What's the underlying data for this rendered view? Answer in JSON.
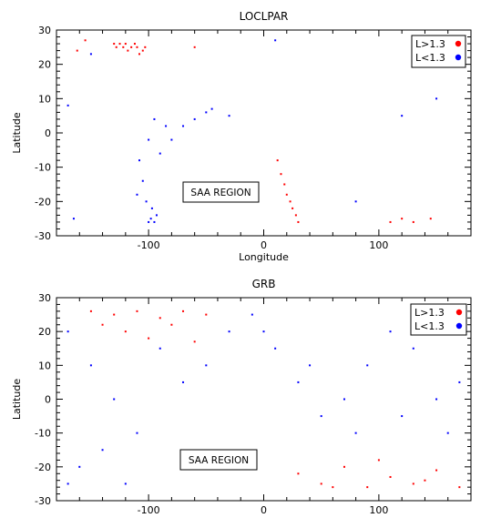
{
  "chart_data": [
    {
      "type": "scatter",
      "title": "LOCLPAR",
      "xlabel": "Longitude",
      "ylabel": "Latitude",
      "xlim": [
        -180,
        180
      ],
      "ylim": [
        -30,
        30
      ],
      "xticks": [
        -100,
        0,
        100
      ],
      "yticks": [
        30,
        20,
        10,
        0,
        -10,
        -20,
        -30
      ],
      "legend_position": "top-right",
      "annotation": "SAA REGION",
      "series": [
        {
          "name": "L>1.3",
          "color": "#ff0000",
          "points": [
            [
              -130,
              26
            ],
            [
              -125,
              26
            ],
            [
              -120,
              26
            ],
            [
              -115,
              25
            ],
            [
              -110,
              25
            ],
            [
              -105,
              24
            ],
            [
              -128,
              25
            ],
            [
              -118,
              24
            ],
            [
              -112,
              26
            ],
            [
              -108,
              23
            ],
            [
              -103,
              25
            ],
            [
              -122,
              25
            ],
            [
              -162,
              24
            ],
            [
              -155,
              27
            ],
            [
              -60,
              25
            ],
            [
              12,
              -8
            ],
            [
              15,
              -12
            ],
            [
              18,
              -15
            ],
            [
              20,
              -18
            ],
            [
              23,
              -20
            ],
            [
              25,
              -22
            ],
            [
              28,
              -24
            ],
            [
              30,
              -26
            ],
            [
              110,
              -26
            ],
            [
              120,
              -25
            ],
            [
              130,
              -26
            ],
            [
              145,
              -25
            ]
          ]
        },
        {
          "name": "L<1.3",
          "color": "#0000ff",
          "points": [
            [
              -100,
              -26
            ],
            [
              -98,
              -25
            ],
            [
              -95,
              -26
            ],
            [
              -93,
              -24
            ],
            [
              -97,
              -22
            ],
            [
              -102,
              -20
            ],
            [
              -105,
              -14
            ],
            [
              -108,
              -8
            ],
            [
              -100,
              -2
            ],
            [
              -95,
              4
            ],
            [
              -85,
              2
            ],
            [
              -80,
              -2
            ],
            [
              -70,
              2
            ],
            [
              -60,
              4
            ],
            [
              -50,
              6
            ],
            [
              -45,
              7
            ],
            [
              -90,
              -6
            ],
            [
              -110,
              -18
            ],
            [
              -150,
              23
            ],
            [
              -170,
              8
            ],
            [
              -165,
              -25
            ],
            [
              -30,
              5
            ],
            [
              10,
              27
            ],
            [
              80,
              -20
            ],
            [
              120,
              5
            ],
            [
              150,
              10
            ]
          ]
        }
      ]
    },
    {
      "type": "scatter",
      "title": "GRB",
      "xlabel": "",
      "ylabel": "Latitude",
      "xlim": [
        -180,
        180
      ],
      "ylim": [
        -30,
        30
      ],
      "xticks": [
        -100,
        0,
        100
      ],
      "yticks": [
        30,
        20,
        10,
        0,
        -10,
        -20,
        -30
      ],
      "legend_position": "top-right",
      "annotation": "SAA REGION",
      "series": [
        {
          "name": "L>1.3",
          "color": "#ff0000",
          "points": [
            [
              -150,
              26
            ],
            [
              -130,
              25
            ],
            [
              -110,
              26
            ],
            [
              -90,
              24
            ],
            [
              -70,
              26
            ],
            [
              -50,
              25
            ],
            [
              -120,
              20
            ],
            [
              -100,
              18
            ],
            [
              -80,
              22
            ],
            [
              -60,
              17
            ],
            [
              -140,
              22
            ],
            [
              30,
              -22
            ],
            [
              50,
              -25
            ],
            [
              70,
              -20
            ],
            [
              90,
              -26
            ],
            [
              110,
              -23
            ],
            [
              130,
              -25
            ],
            [
              150,
              -21
            ],
            [
              170,
              -26
            ],
            [
              60,
              -26
            ],
            [
              100,
              -18
            ],
            [
              140,
              -24
            ]
          ]
        },
        {
          "name": "L<1.3",
          "color": "#0000ff",
          "points": [
            [
              -170,
              20
            ],
            [
              -150,
              10
            ],
            [
              -130,
              0
            ],
            [
              -110,
              -10
            ],
            [
              -160,
              -20
            ],
            [
              -120,
              -25
            ],
            [
              -90,
              15
            ],
            [
              -70,
              5
            ],
            [
              -50,
              10
            ],
            [
              -30,
              20
            ],
            [
              -10,
              25
            ],
            [
              10,
              15
            ],
            [
              30,
              5
            ],
            [
              50,
              -5
            ],
            [
              70,
              0
            ],
            [
              90,
              10
            ],
            [
              110,
              20
            ],
            [
              130,
              15
            ],
            [
              150,
              0
            ],
            [
              170,
              5
            ],
            [
              -170,
              -25
            ],
            [
              -140,
              -15
            ],
            [
              0,
              20
            ],
            [
              40,
              10
            ],
            [
              80,
              -10
            ],
            [
              120,
              -5
            ],
            [
              160,
              -10
            ]
          ]
        }
      ]
    }
  ]
}
